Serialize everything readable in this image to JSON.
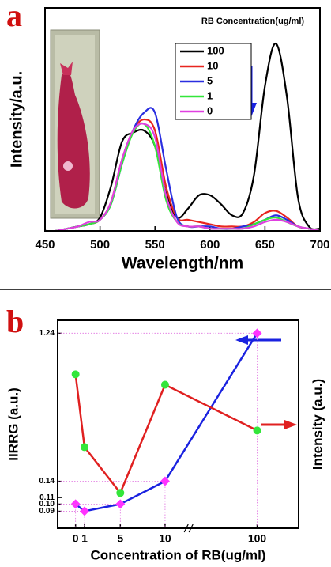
{
  "chart_data": [
    {
      "type": "line",
      "panel_label": "a",
      "xlabel": "Wavelength/nm",
      "ylabel": "Intensity/a.u.",
      "legend_title": "RB Concentration(ug/ml)",
      "smooth": true,
      "x": [
        450,
        460,
        470,
        480,
        490,
        500,
        510,
        520,
        530,
        540,
        550,
        560,
        570,
        580,
        590,
        600,
        610,
        620,
        630,
        640,
        650,
        660,
        670,
        680,
        690,
        700
      ],
      "xlim": [
        450,
        700
      ],
      "xticks": [
        450,
        500,
        550,
        600,
        650,
        700
      ],
      "ylim": [
        0,
        1
      ],
      "series": [
        {
          "name": "100",
          "color": "#000000",
          "values": [
            0,
            0,
            0.01,
            0.02,
            0.03,
            0.06,
            0.2,
            0.4,
            0.44,
            0.45,
            0.38,
            0.17,
            0.06,
            0.1,
            0.16,
            0.16,
            0.12,
            0.07,
            0.08,
            0.25,
            0.65,
            0.84,
            0.6,
            0.15,
            0.02,
            0.01
          ]
        },
        {
          "name": "10",
          "color": "#e8251f",
          "values": [
            0,
            0,
            0.01,
            0.02,
            0.03,
            0.05,
            0.13,
            0.32,
            0.45,
            0.5,
            0.45,
            0.2,
            0.06,
            0.05,
            0.04,
            0.03,
            0.02,
            0.02,
            0.02,
            0.04,
            0.08,
            0.09,
            0.06,
            0.02,
            0.01,
            0
          ]
        },
        {
          "name": "5",
          "color": "#2a2ee0",
          "values": [
            0,
            0,
            0.01,
            0.02,
            0.03,
            0.05,
            0.12,
            0.3,
            0.45,
            0.53,
            0.53,
            0.28,
            0.06,
            0.02,
            0.02,
            0.02,
            0.01,
            0.01,
            0.02,
            0.03,
            0.05,
            0.07,
            0.05,
            0.02,
            0.01,
            0
          ]
        },
        {
          "name": "1",
          "color": "#33e63a",
          "values": [
            0,
            0,
            0.01,
            0.02,
            0.03,
            0.05,
            0.12,
            0.3,
            0.44,
            0.48,
            0.38,
            0.14,
            0.04,
            0.02,
            0.02,
            0.01,
            0.01,
            0.01,
            0.01,
            0.03,
            0.05,
            0.06,
            0.04,
            0.02,
            0.01,
            0
          ]
        },
        {
          "name": "0",
          "color": "#e040e0",
          "values": [
            0,
            0,
            0.01,
            0.02,
            0.04,
            0.05,
            0.13,
            0.32,
            0.45,
            0.48,
            0.42,
            0.16,
            0.04,
            0.02,
            0.02,
            0.01,
            0.01,
            0.01,
            0.01,
            0.02,
            0.04,
            0.05,
            0.04,
            0.02,
            0.01,
            0
          ]
        }
      ]
    },
    {
      "type": "line",
      "panel_label": "b",
      "xlabel": "Concentration of RB(ug/ml)",
      "ylabel": "IIRRG (a.u.)",
      "y2label": "Intensity (a.u.)",
      "x": [
        0,
        1,
        5,
        10,
        100
      ],
      "xlim": [
        -2,
        120
      ],
      "x_break": [
        12,
        70
      ],
      "xticks": [
        0,
        1,
        5,
        10,
        100
      ],
      "ylim": [
        0.07,
        1.5
      ],
      "yscale": "log",
      "yticks": [
        0.09,
        {
          "value": 0.1,
          "label": "0.10"
        },
        0.11,
        0.14,
        1.24
      ],
      "y2lim": [
        0,
        1
      ],
      "series": [
        {
          "color": "#1a22e0",
          "marker_color": "#ff33ff",
          "marker": "diamond",
          "values": [
            0.1,
            0.09,
            0.1,
            0.14,
            1.24
          ]
        },
        {
          "color": "#e02020",
          "marker_color": "#33e63a",
          "marker": "circle",
          "axis": "y2",
          "values": [
            0.74,
            0.39,
            0.17,
            0.69,
            0.47
          ]
        }
      ]
    }
  ]
}
